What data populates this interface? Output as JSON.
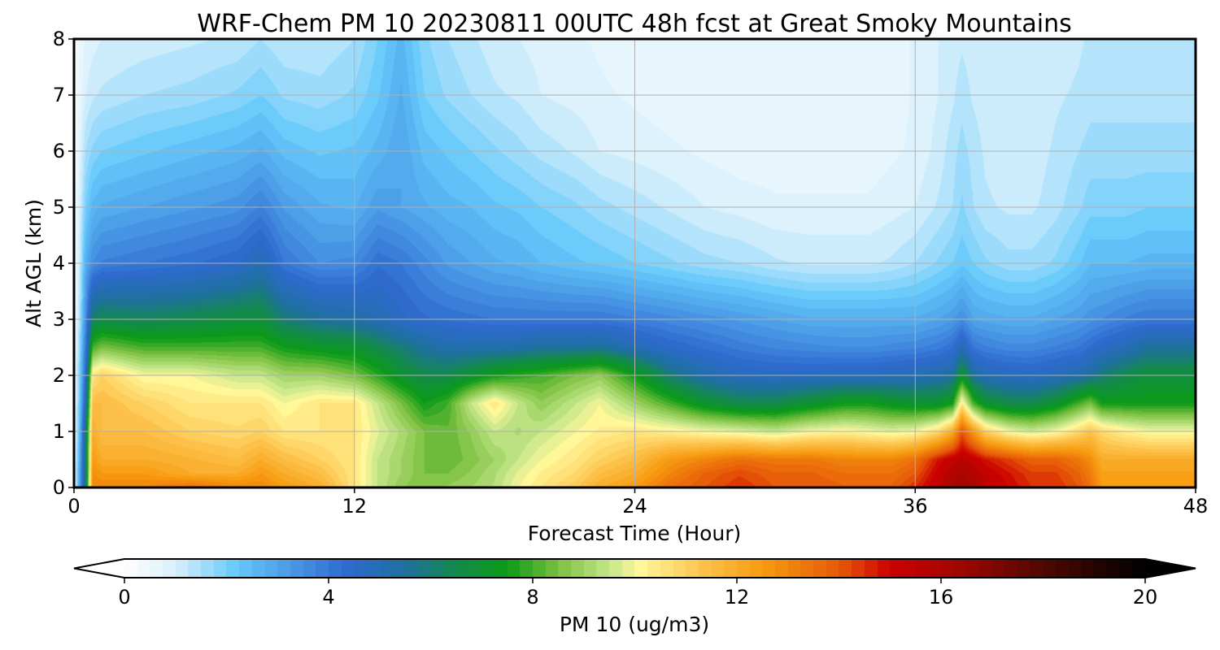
{
  "chart_data": {
    "type": "heatmap",
    "title": "WRF-Chem PM 10  20230811 00UTC 48h fcst at Great Smoky Mountains",
    "xlabel": "Forecast Time (Hour)",
    "ylabel": "Alt AGL (km)",
    "xlim": [
      0,
      48
    ],
    "ylim": [
      0,
      8
    ],
    "xticks": [
      "0",
      "12",
      "24",
      "36",
      "48"
    ],
    "yticks": [
      "0",
      "1",
      "2",
      "3",
      "4",
      "5",
      "6",
      "7",
      "8"
    ],
    "grid": true,
    "colorbar": {
      "label": "PM 10  (ug/m3)",
      "range": [
        0,
        20
      ],
      "ticks": [
        "0",
        "4",
        "8",
        "12",
        "16",
        "20"
      ],
      "extend": "both",
      "stops": [
        {
          "v": 0,
          "color": "#ffffff"
        },
        {
          "v": 1,
          "color": "#d8f0fc"
        },
        {
          "v": 2.2,
          "color": "#64c8fa"
        },
        {
          "v": 4.3,
          "color": "#2f6bd0"
        },
        {
          "v": 5.5,
          "color": "#1e70a0"
        },
        {
          "v": 6.5,
          "color": "#138a4a"
        },
        {
          "v": 7.5,
          "color": "#0a9a16"
        },
        {
          "v": 8.5,
          "color": "#7cc040"
        },
        {
          "v": 9.5,
          "color": "#c4e68a"
        },
        {
          "v": 10.1,
          "color": "#fff89a"
        },
        {
          "v": 11.3,
          "color": "#fdc44e"
        },
        {
          "v": 12.5,
          "color": "#f79b10"
        },
        {
          "v": 14,
          "color": "#e75a08"
        },
        {
          "v": 15,
          "color": "#cc0000"
        },
        {
          "v": 16.5,
          "color": "#9a0600"
        },
        {
          "v": 18,
          "color": "#4e0800"
        },
        {
          "v": 20,
          "color": "#000000"
        }
      ]
    },
    "x": [
      0,
      0.25,
      0.5,
      0.8,
      1.2,
      3,
      5,
      7,
      8,
      9,
      10.5,
      12,
      13,
      14,
      15,
      16,
      17,
      18,
      19,
      20,
      21.5,
      22.5,
      24,
      25.5,
      27,
      28.5,
      30,
      31.5,
      33,
      34,
      35,
      36,
      37,
      37.6,
      38,
      38.5,
      39,
      40,
      41,
      42,
      43,
      43.5,
      44,
      45,
      46,
      47,
      48
    ],
    "y": [
      0,
      0.25,
      0.5,
      1,
      1.5,
      2,
      2.5,
      3,
      4,
      5,
      6,
      7,
      8
    ],
    "z": [
      [
        0.5,
        3.0,
        6.0,
        13.0,
        13.0,
        13.0,
        13.5,
        13.0,
        13.0,
        12.5,
        12.0,
        10.5,
        9.5,
        8.8,
        8.5,
        8.8,
        9.0,
        9.3,
        10.0,
        10.5,
        11.2,
        12.0,
        12.5,
        13.5,
        14.0,
        14.5,
        14.0,
        14.0,
        13.8,
        13.8,
        13.8,
        14.5,
        15.5,
        16.0,
        16.3,
        16.0,
        15.5,
        15.0,
        14.5,
        14.5,
        14.0,
        13.5,
        12.5,
        12.5,
        12.5,
        12.5,
        12.5
      ],
      [
        0.5,
        3.0,
        6.0,
        12.8,
        12.5,
        12.5,
        12.0,
        12.0,
        12.5,
        12.0,
        11.5,
        10.5,
        9.5,
        9.0,
        8.5,
        8.5,
        8.8,
        9.2,
        9.8,
        10.3,
        10.8,
        11.5,
        12.0,
        13.0,
        13.8,
        14.2,
        13.8,
        13.8,
        13.5,
        13.5,
        13.5,
        14.0,
        15.2,
        15.8,
        16.0,
        15.8,
        15.3,
        14.8,
        14.3,
        14.3,
        13.8,
        13.2,
        12.3,
        12.3,
        12.3,
        12.3,
        12.3
      ],
      [
        0.4,
        2.8,
        6.0,
        12.5,
        12.0,
        12.0,
        11.8,
        11.5,
        12.0,
        11.5,
        11.0,
        10.5,
        9.5,
        9.0,
        8.5,
        8.3,
        8.6,
        9.0,
        9.5,
        10.0,
        10.5,
        11.0,
        11.5,
        12.5,
        13.0,
        13.5,
        13.3,
        13.3,
        13.0,
        13.0,
        13.0,
        13.5,
        14.8,
        15.3,
        15.5,
        15.3,
        14.8,
        14.3,
        13.8,
        13.8,
        13.3,
        12.8,
        12.0,
        12.0,
        12.0,
        12.0,
        12.0
      ],
      [
        0.3,
        2.5,
        6.0,
        12.0,
        11.5,
        11.5,
        11.0,
        10.8,
        11.0,
        10.5,
        10.5,
        10.5,
        9.8,
        9.2,
        8.5,
        8.3,
        8.8,
        9.5,
        9.2,
        9.5,
        10.0,
        10.3,
        10.5,
        10.3,
        10.0,
        9.8,
        9.5,
        10.0,
        10.2,
        10.0,
        9.8,
        10.0,
        10.8,
        12.0,
        14.0,
        12.5,
        11.0,
        10.0,
        9.6,
        10.0,
        10.8,
        11.3,
        10.8,
        10.3,
        10.0,
        10.0,
        10.0
      ],
      [
        0.3,
        2.2,
        5.0,
        11.5,
        11.5,
        11.0,
        10.5,
        10.5,
        10.5,
        10.0,
        10.5,
        10.5,
        9.5,
        8.5,
        7.5,
        8.0,
        9.5,
        10.5,
        9.5,
        8.8,
        9.5,
        10.0,
        9.0,
        8.0,
        7.0,
        6.5,
        6.5,
        7.0,
        7.5,
        7.5,
        7.2,
        7.0,
        7.0,
        7.5,
        10.5,
        8.0,
        7.0,
        6.5,
        6.5,
        7.0,
        8.0,
        8.5,
        7.5,
        7.5,
        7.5,
        7.5,
        7.5
      ],
      [
        0.2,
        2.0,
        4.5,
        10.5,
        11.0,
        10.0,
        10.0,
        9.5,
        9.5,
        9.0,
        9.0,
        8.5,
        7.8,
        7.0,
        6.5,
        6.5,
        7.0,
        7.5,
        7.8,
        8.0,
        8.5,
        8.8,
        7.5,
        6.0,
        5.2,
        4.8,
        4.7,
        4.7,
        4.8,
        4.8,
        4.9,
        5.0,
        5.2,
        5.5,
        7.0,
        5.5,
        5.0,
        4.8,
        4.7,
        4.9,
        5.2,
        5.5,
        6.0,
        6.5,
        6.8,
        6.8,
        6.8
      ],
      [
        0.2,
        1.8,
        4.0,
        8.0,
        8.5,
        8.0,
        8.0,
        8.0,
        8.0,
        7.5,
        7.2,
        7.0,
        6.5,
        6.0,
        5.5,
        5.2,
        5.2,
        5.2,
        5.3,
        5.5,
        5.5,
        5.6,
        5.0,
        4.5,
        4.2,
        3.9,
        3.7,
        3.6,
        3.5,
        3.5,
        3.6,
        3.7,
        3.9,
        4.2,
        5.0,
        4.0,
        3.8,
        3.6,
        3.6,
        3.8,
        4.0,
        4.3,
        4.6,
        5.0,
        5.5,
        5.5,
        5.5
      ],
      [
        0.1,
        1.5,
        3.5,
        6.2,
        6.5,
        6.3,
        6.5,
        6.8,
        6.8,
        6.0,
        5.5,
        5.3,
        5.0,
        4.6,
        4.3,
        4.2,
        4.1,
        4.0,
        4.0,
        4.0,
        4.0,
        4.0,
        3.8,
        3.6,
        3.4,
        3.2,
        3.0,
        2.8,
        2.8,
        2.8,
        2.8,
        2.8,
        3.0,
        3.2,
        3.5,
        3.0,
        2.9,
        2.8,
        2.8,
        3.0,
        3.2,
        3.4,
        3.5,
        3.8,
        4.0,
        4.0,
        4.0
      ],
      [
        0.1,
        1.2,
        2.8,
        3.5,
        3.8,
        4.0,
        4.2,
        4.5,
        5.0,
        4.0,
        3.5,
        3.6,
        4.2,
        4.0,
        3.6,
        3.2,
        3.0,
        2.8,
        2.7,
        2.5,
        2.3,
        2.2,
        2.0,
        1.8,
        1.6,
        1.5,
        1.3,
        1.2,
        1.2,
        1.2,
        1.3,
        1.5,
        1.8,
        2.0,
        2.2,
        2.0,
        1.8,
        1.6,
        1.6,
        1.8,
        2.2,
        2.5,
        2.5,
        2.5,
        2.6,
        2.6,
        2.6
      ],
      [
        0.1,
        1.0,
        2.0,
        2.6,
        2.8,
        3.0,
        3.2,
        3.4,
        3.8,
        3.2,
        2.8,
        2.7,
        3.2,
        3.0,
        2.8,
        2.6,
        2.5,
        2.3,
        2.2,
        2.0,
        1.8,
        1.6,
        1.4,
        1.2,
        1.0,
        0.9,
        0.8,
        0.8,
        0.8,
        0.8,
        0.9,
        1.0,
        1.3,
        1.5,
        1.8,
        1.5,
        1.3,
        1.2,
        1.2,
        1.4,
        1.7,
        1.9,
        1.9,
        1.9,
        2.0,
        2.0,
        2.0
      ],
      [
        0.1,
        0.8,
        1.5,
        1.8,
        2.0,
        2.2,
        2.4,
        2.6,
        2.8,
        2.4,
        2.2,
        2.3,
        2.6,
        3.0,
        2.4,
        2.2,
        2.0,
        1.8,
        1.6,
        1.4,
        1.2,
        1.0,
        0.9,
        0.8,
        0.7,
        0.6,
        0.6,
        0.6,
        0.6,
        0.6,
        0.7,
        0.8,
        1.1,
        1.4,
        1.6,
        1.4,
        1.2,
        1.1,
        1.1,
        1.3,
        1.5,
        1.6,
        1.6,
        1.6,
        1.6,
        1.6,
        1.6
      ],
      [
        0.1,
        0.6,
        1.0,
        1.2,
        1.3,
        1.5,
        1.6,
        1.8,
        2.0,
        1.7,
        1.6,
        1.8,
        2.2,
        2.8,
        2.0,
        1.7,
        1.5,
        1.3,
        1.2,
        1.0,
        0.9,
        0.8,
        0.7,
        0.6,
        0.5,
        0.5,
        0.5,
        0.5,
        0.5,
        0.5,
        0.6,
        0.8,
        1.0,
        1.2,
        1.4,
        1.2,
        1.1,
        1.0,
        1.0,
        1.2,
        1.3,
        1.4,
        1.4,
        1.4,
        1.4,
        1.4,
        1.4
      ],
      [
        0.1,
        0.5,
        0.8,
        0.9,
        1.0,
        1.1,
        1.2,
        1.3,
        1.5,
        1.3,
        1.3,
        1.5,
        2.0,
        2.6,
        1.8,
        1.5,
        1.3,
        1.1,
        1.0,
        0.9,
        0.8,
        0.7,
        0.6,
        0.5,
        0.5,
        0.5,
        0.5,
        0.5,
        0.5,
        0.5,
        0.6,
        0.8,
        1.0,
        1.1,
        1.2,
        1.1,
        1.0,
        1.0,
        1.0,
        1.1,
        1.2,
        1.3,
        1.3,
        1.3,
        1.3,
        1.3,
        1.3
      ]
    ]
  }
}
